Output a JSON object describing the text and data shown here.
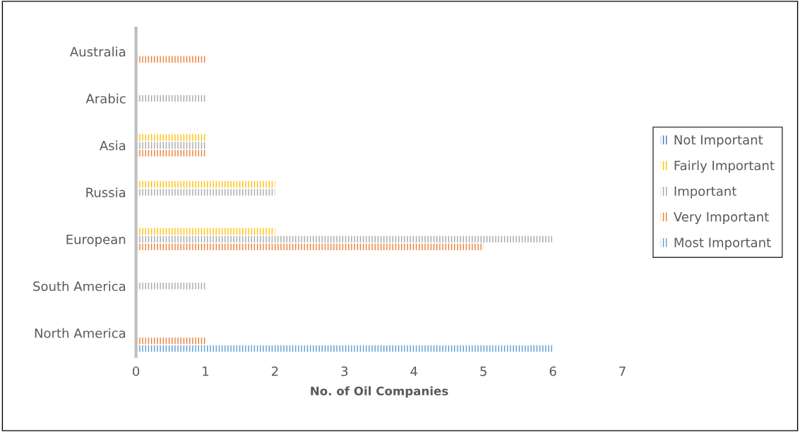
{
  "chart_data": {
    "type": "bar",
    "orientation": "horizontal",
    "xlabel": "No. of Oil Companies",
    "categories": [
      "Australia",
      "Arabic",
      "Asia",
      "Russia",
      "European",
      "South America",
      "North America"
    ],
    "series": [
      {
        "name": "Not Important",
        "color": "#4472c4",
        "values": [
          null,
          null,
          null,
          null,
          null,
          null,
          null
        ]
      },
      {
        "name": "Fairly Important",
        "color": "#ffc000",
        "values": [
          null,
          null,
          1,
          2,
          2,
          null,
          null
        ]
      },
      {
        "name": "Important",
        "color": "#a5a5a5",
        "values": [
          null,
          1,
          1,
          2,
          6,
          1,
          null
        ]
      },
      {
        "name": "Very Important",
        "color": "#ed7d31",
        "values": [
          1,
          null,
          1,
          null,
          5,
          null,
          1
        ]
      },
      {
        "name": "Most Important",
        "color": "#5b9bd5",
        "values": [
          null,
          null,
          null,
          null,
          null,
          null,
          6
        ]
      }
    ],
    "xlim": [
      0,
      7
    ],
    "xticks": [
      0,
      1,
      2,
      3,
      4,
      5,
      6,
      7
    ],
    "grid": false,
    "legend": "right"
  }
}
